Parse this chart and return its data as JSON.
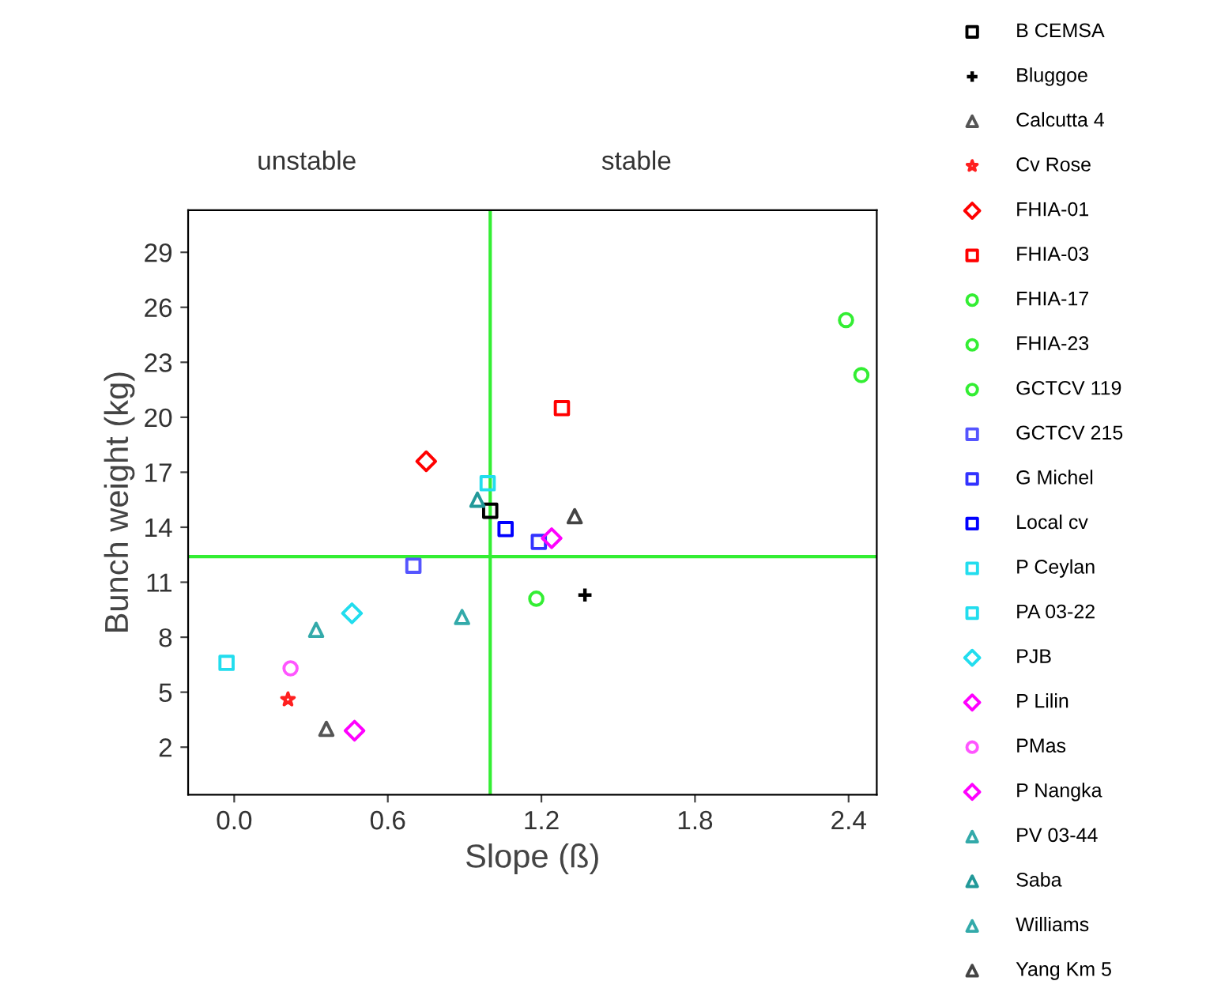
{
  "chart_data": {
    "type": "scatter",
    "xlabel": "Slope (ß)",
    "ylabel": "Bunch weight (kg)",
    "annotations": [
      "unstable",
      "stable"
    ],
    "xlim": [
      -0.18,
      2.51
    ],
    "ylim": [
      -0.6,
      31.3
    ],
    "xticks": [
      {
        "value": 0,
        "label": "0.0"
      },
      {
        "value": 0.6,
        "label": "0.6"
      },
      {
        "value": 1.2,
        "label": "1.2"
      },
      {
        "value": 1.8,
        "label": "1.8"
      },
      {
        "value": 2.4,
        "label": "2.4"
      }
    ],
    "yticks": [
      2,
      5,
      8,
      11,
      14,
      17,
      20,
      23,
      26,
      29
    ],
    "grid": false,
    "legend": "right",
    "ref_lines": [
      {
        "axis": "x",
        "value": 1.0,
        "color": "#33ee33"
      },
      {
        "axis": "y",
        "value": 12.4,
        "color": "#33ee33"
      }
    ],
    "series": [
      {
        "name": "B CEMSA",
        "color": "#000000",
        "marker": "square",
        "x": [
          1.0
        ],
        "values": [
          14.9
        ]
      },
      {
        "name": "Bluggoe",
        "color": "#000000",
        "marker": "cross",
        "x": [
          1.37
        ],
        "values": [
          10.3
        ]
      },
      {
        "name": "Calcutta 4",
        "color": "#555555",
        "marker": "triangle",
        "x": [
          0.36
        ],
        "values": [
          3.0
        ]
      },
      {
        "name": "Cv Rose",
        "color": "#ff2020",
        "marker": "star",
        "x": [
          0.21
        ],
        "values": [
          4.6
        ]
      },
      {
        "name": "FHIA-01",
        "color": "#ff0000",
        "marker": "diamond",
        "x": [
          0.75
        ],
        "values": [
          17.6
        ]
      },
      {
        "name": "FHIA-03",
        "color": "#ff0000",
        "marker": "square",
        "x": [
          1.28
        ],
        "values": [
          20.5
        ]
      },
      {
        "name": "FHIA-17",
        "color": "#33ee33",
        "marker": "circle",
        "x": [
          2.39
        ],
        "values": [
          25.3
        ]
      },
      {
        "name": "FHIA-23",
        "color": "#33ee33",
        "marker": "circle",
        "x": [
          2.45
        ],
        "values": [
          22.3
        ]
      },
      {
        "name": "GCTCV 119",
        "color": "#33ee33",
        "marker": "circle",
        "x": [
          1.18
        ],
        "values": [
          10.1
        ]
      },
      {
        "name": "GCTCV 215",
        "color": "#5555ff",
        "marker": "square",
        "x": [
          0.7
        ],
        "values": [
          11.9
        ]
      },
      {
        "name": "G Michel",
        "color": "#3333ff",
        "marker": "square",
        "x": [
          1.19
        ],
        "values": [
          13.2
        ]
      },
      {
        "name": "Local cv",
        "color": "#0000ff",
        "marker": "square",
        "x": [
          1.06
        ],
        "values": [
          13.9
        ]
      },
      {
        "name": "P Ceylan",
        "color": "#22ddee",
        "marker": "square",
        "x": [
          0.99
        ],
        "values": [
          16.4
        ]
      },
      {
        "name": "PA 03-22",
        "color": "#22ddee",
        "marker": "square",
        "x": [
          -0.03
        ],
        "values": [
          6.6
        ]
      },
      {
        "name": "PJB",
        "color": "#22ddee",
        "marker": "diamond",
        "x": [
          0.46
        ],
        "values": [
          9.3
        ]
      },
      {
        "name": "P Lilin",
        "color": "#ff00ff",
        "marker": "diamond",
        "x": [
          0.47
        ],
        "values": [
          2.9
        ]
      },
      {
        "name": "PMas",
        "color": "#ff55ff",
        "marker": "circle",
        "x": [
          0.22
        ],
        "values": [
          6.3
        ]
      },
      {
        "name": "P Nangka",
        "color": "#ff00ff",
        "marker": "diamond",
        "x": [
          1.24
        ],
        "values": [
          13.4
        ]
      },
      {
        "name": "PV 03-44",
        "color": "#33aaaa",
        "marker": "triangle",
        "x": [
          0.32
        ],
        "values": [
          8.4
        ]
      },
      {
        "name": "Saba",
        "color": "#229999",
        "marker": "triangle",
        "x": [
          0.95
        ],
        "values": [
          15.5
        ]
      },
      {
        "name": "Williams",
        "color": "#33aaaa",
        "marker": "triangle",
        "x": [
          0.89
        ],
        "values": [
          9.1
        ]
      },
      {
        "name": "Yang Km 5",
        "color": "#444444",
        "marker": "triangle",
        "x": [
          1.33
        ],
        "values": [
          14.6
        ]
      }
    ]
  }
}
